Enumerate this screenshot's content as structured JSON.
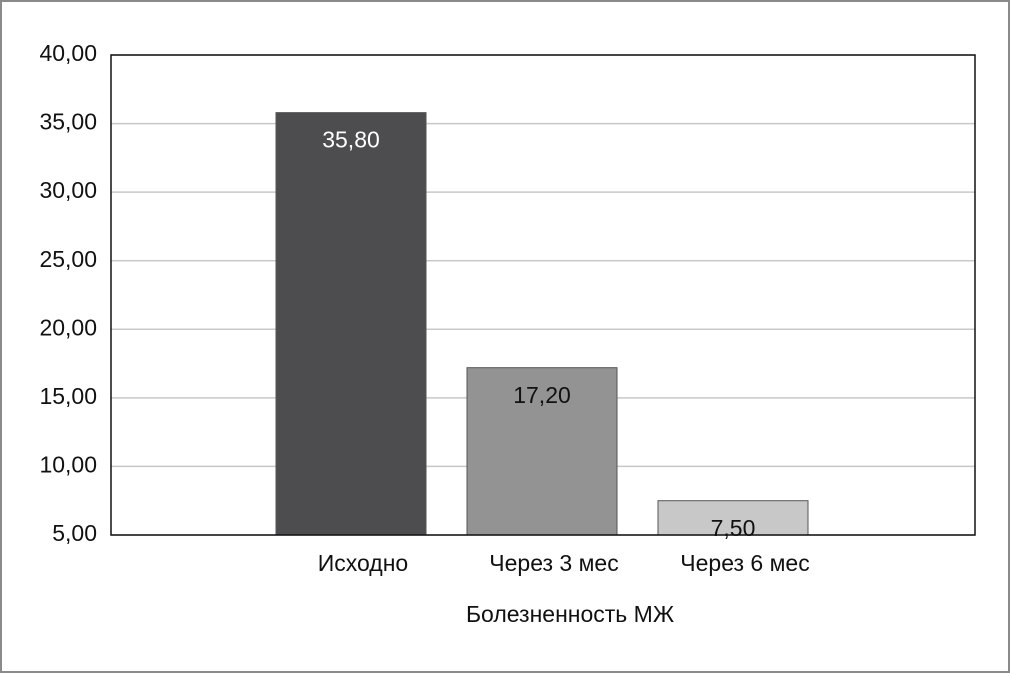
{
  "chart_data": {
    "type": "bar",
    "x_label": "Болезненность МЖ",
    "categories": [
      "Исходно",
      "Через 3 мес",
      "Через 6 мес"
    ],
    "values": [
      35.8,
      17.2,
      7.5
    ],
    "value_labels": [
      "35,80",
      "17,20",
      "7,50"
    ],
    "colors": [
      "#4d4d4f",
      "#939393",
      "#c8c8c8"
    ],
    "ylim": [
      5,
      40
    ],
    "yticks": [
      {
        "value": 5,
        "label": "5,00"
      },
      {
        "value": 10,
        "label": "10,00"
      },
      {
        "value": 15,
        "label": "15,00"
      },
      {
        "value": 20,
        "label": "20,00"
      },
      {
        "value": 25,
        "label": "25,00"
      },
      {
        "value": 30,
        "label": "30,00"
      },
      {
        "value": 35,
        "label": "35,00"
      },
      {
        "value": 40,
        "label": "40,00"
      }
    ],
    "grid": true
  }
}
